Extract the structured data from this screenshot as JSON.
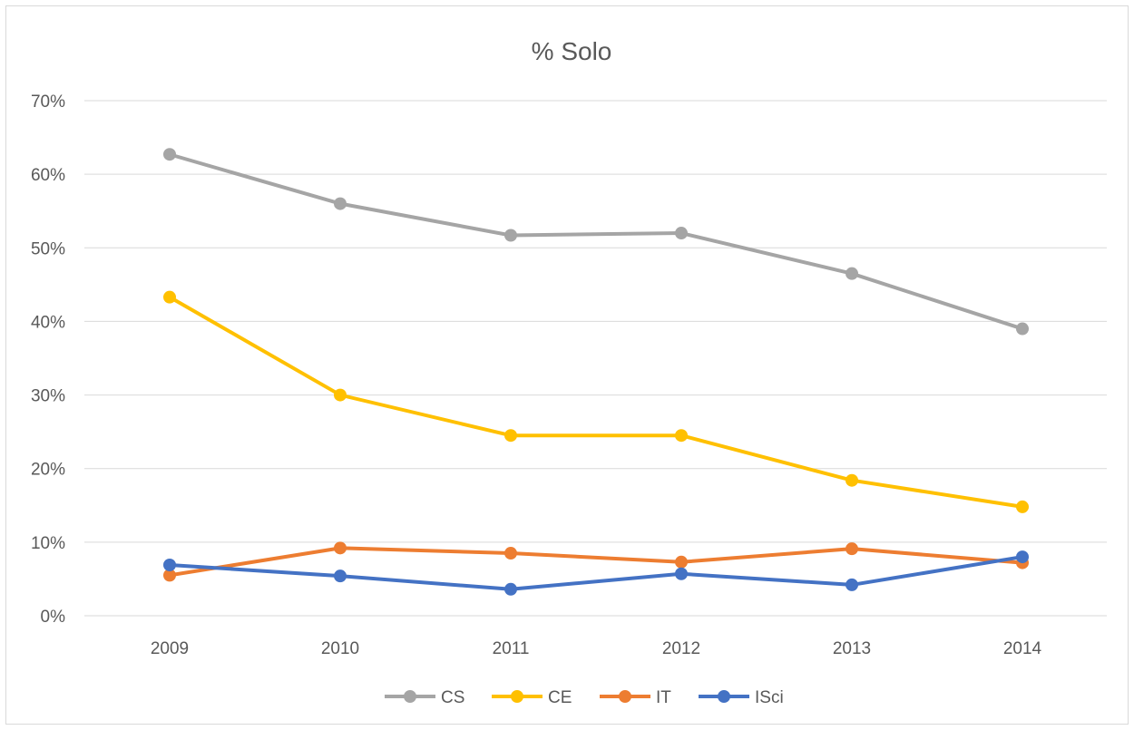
{
  "chart_data": {
    "type": "line",
    "title": "% Solo",
    "xlabel": "",
    "ylabel": "",
    "categories": [
      "2009",
      "2010",
      "2011",
      "2012",
      "2013",
      "2014"
    ],
    "ylim": [
      0,
      70
    ],
    "yticks": [
      "0%",
      "10%",
      "20%",
      "30%",
      "40%",
      "50%",
      "60%",
      "70%"
    ],
    "grid": true,
    "legend_position": "bottom",
    "series": [
      {
        "name": "CS",
        "color": "#a5a5a5",
        "values": [
          62.7,
          56.0,
          51.7,
          52.0,
          46.5,
          39.0
        ]
      },
      {
        "name": "CE",
        "color": "#ffc000",
        "values": [
          43.3,
          30.0,
          24.5,
          24.5,
          18.4,
          14.8
        ]
      },
      {
        "name": "IT",
        "color": "#ed7d31",
        "values": [
          5.5,
          9.2,
          8.5,
          7.3,
          9.1,
          7.2
        ]
      },
      {
        "name": "ISci",
        "color": "#4472c4",
        "values": [
          6.9,
          5.4,
          3.6,
          5.7,
          4.2,
          8.0
        ]
      }
    ]
  }
}
